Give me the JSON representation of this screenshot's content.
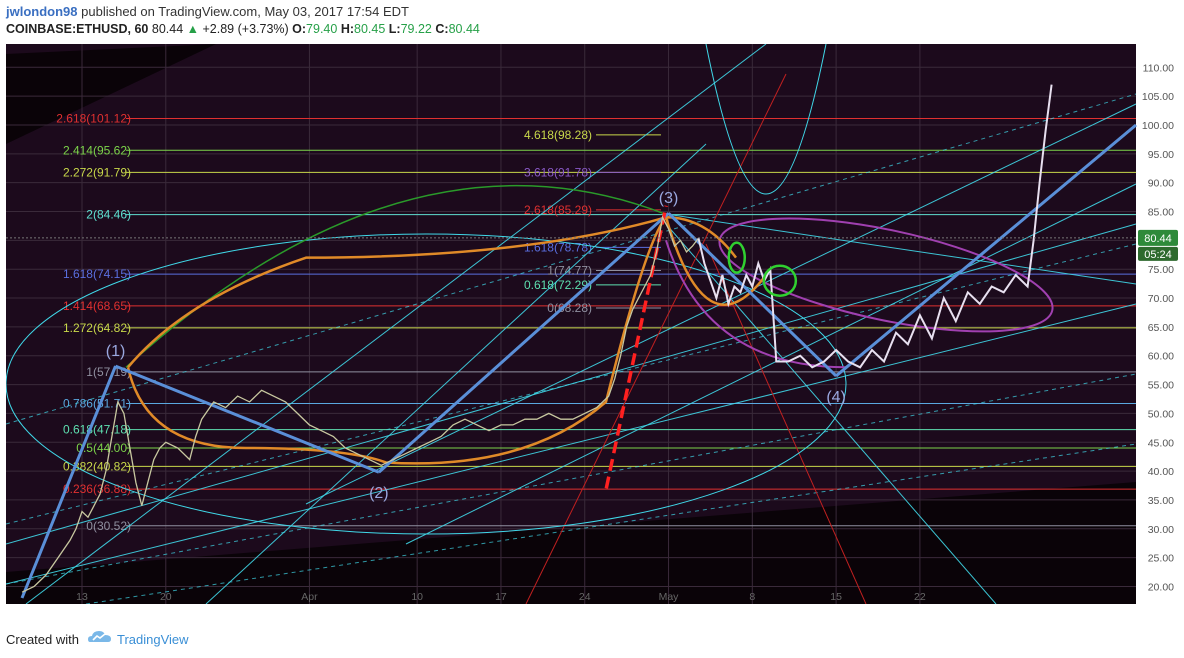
{
  "header": {
    "author": "jwlondon98",
    "published": "published on TradingView.com, May 03, 2017 17:54 EDT",
    "symbol": "COINBASE:ETHUSD, 60",
    "last": "80.44",
    "change": "+2.89 (+3.73%)",
    "o_label": "O:",
    "o_value": "79.40",
    "h_label": "H:",
    "h_value": "80.45",
    "l_label": "L:",
    "l_value": "79.22",
    "c_label": "C:",
    "c_value": "80.44"
  },
  "footer": {
    "created": "Created with",
    "brand": "TradingView"
  },
  "colors": {
    "background": "#1c0a1c",
    "up": "#26a048",
    "fib_red": "#e03030",
    "fib_yellow": "#c8d84a",
    "fib_teal": "#5ee0d0",
    "fib_blue": "#5a6fe0",
    "fib_purple": "#b060c0",
    "trend_blue": "#5a8fd8",
    "orange": "#e08a28",
    "cyan": "#40d8e8"
  },
  "chart_data": {
    "type": "line",
    "title": "",
    "xlabel": "",
    "ylabel": "",
    "ylim": [
      18,
      113
    ],
    "grid": true,
    "y_ticks": [
      20,
      25,
      30,
      35,
      40,
      45,
      50,
      55,
      60,
      65,
      70,
      75,
      80,
      85,
      90,
      95,
      100,
      105,
      110
    ],
    "x_ticks": [
      {
        "label": "13",
        "day": 13
      },
      {
        "label": "20",
        "day": 20
      },
      {
        "label": "Apr",
        "day": 32
      },
      {
        "label": "10",
        "day": 41
      },
      {
        "label": "17",
        "day": 48
      },
      {
        "label": "24",
        "day": 55
      },
      {
        "label": "May",
        "day": 62
      },
      {
        "label": "8",
        "day": 69
      },
      {
        "label": "15",
        "day": 76
      },
      {
        "label": "22",
        "day": 83
      }
    ],
    "current_price": {
      "value": "80.44",
      "timer": "05:24"
    },
    "price_series": [
      [
        8,
        19
      ],
      [
        9,
        20
      ],
      [
        10,
        22
      ],
      [
        11,
        25
      ],
      [
        12,
        28
      ],
      [
        12.5,
        30
      ],
      [
        13,
        33
      ],
      [
        13.5,
        32
      ],
      [
        14,
        34
      ],
      [
        14.5,
        36
      ],
      [
        15,
        40
      ],
      [
        15.5,
        46
      ],
      [
        16,
        52
      ],
      [
        16.5,
        50
      ],
      [
        17,
        44
      ],
      [
        17.5,
        38
      ],
      [
        18,
        34
      ],
      [
        18.5,
        38
      ],
      [
        19,
        42
      ],
      [
        19.5,
        44
      ],
      [
        20,
        45
      ],
      [
        21,
        44
      ],
      [
        22,
        42
      ],
      [
        22.5,
        46
      ],
      [
        23,
        49
      ],
      [
        24,
        52
      ],
      [
        25,
        51
      ],
      [
        26,
        53
      ],
      [
        27,
        52
      ],
      [
        28,
        54
      ],
      [
        29,
        53
      ],
      [
        30,
        52
      ],
      [
        31,
        50
      ],
      [
        32,
        48
      ],
      [
        33,
        47
      ],
      [
        34,
        46
      ],
      [
        35,
        44
      ],
      [
        36,
        43
      ],
      [
        37,
        42
      ],
      [
        38,
        41
      ],
      [
        39,
        42
      ],
      [
        40,
        43
      ],
      [
        41,
        44
      ],
      [
        42,
        45
      ],
      [
        43,
        46
      ],
      [
        44,
        48
      ],
      [
        45,
        49
      ],
      [
        46,
        48
      ],
      [
        47,
        47
      ],
      [
        48,
        48
      ],
      [
        49,
        48
      ],
      [
        50,
        49
      ],
      [
        51,
        49
      ],
      [
        52,
        50
      ],
      [
        53,
        49
      ],
      [
        54,
        49
      ],
      [
        55,
        50
      ],
      [
        56,
        51
      ],
      [
        57,
        53
      ],
      [
        57.5,
        56
      ],
      [
        58,
        60
      ],
      [
        58.5,
        65
      ],
      [
        59,
        68
      ],
      [
        59.5,
        70
      ],
      [
        60,
        72
      ],
      [
        60.5,
        74
      ],
      [
        61,
        78
      ],
      [
        61.5,
        84
      ],
      [
        62,
        82
      ],
      [
        62.5,
        79
      ],
      [
        63,
        80
      ],
      [
        63.5,
        78
      ],
      [
        64,
        79
      ],
      [
        64.5,
        80.4
      ]
    ],
    "projection_path": [
      [
        64.5,
        80.4
      ],
      [
        65,
        76
      ],
      [
        65.5,
        73
      ],
      [
        66,
        70
      ],
      [
        66.5,
        74
      ],
      [
        67,
        69
      ],
      [
        67.5,
        72
      ],
      [
        68,
        71
      ],
      [
        68.5,
        74
      ],
      [
        69,
        72
      ],
      [
        69.5,
        76
      ],
      [
        70,
        73
      ],
      [
        70.5,
        75
      ],
      [
        71,
        59
      ],
      [
        72,
        59
      ],
      [
        73,
        60
      ],
      [
        74,
        58
      ],
      [
        75,
        59
      ],
      [
        76,
        61
      ],
      [
        77,
        59
      ],
      [
        78,
        58
      ],
      [
        79,
        61
      ],
      [
        80,
        59
      ],
      [
        81,
        64
      ],
      [
        82,
        62
      ],
      [
        83,
        67
      ],
      [
        84,
        63
      ],
      [
        85,
        70
      ],
      [
        86,
        66
      ],
      [
        87,
        71
      ],
      [
        88,
        69
      ],
      [
        89,
        72
      ],
      [
        90,
        71
      ],
      [
        91,
        74
      ],
      [
        92,
        72
      ],
      [
        92.5,
        80
      ],
      [
        93,
        90
      ],
      [
        93.5,
        99
      ],
      [
        94,
        107
      ]
    ],
    "fib_levels": [
      {
        "label": "2.618(101.12)",
        "value": 101.12,
        "color": "#e03030"
      },
      {
        "label": "2.414(95.62)",
        "value": 95.62,
        "color": "#7cd44a"
      },
      {
        "label": "2.272(91.79)",
        "value": 91.79,
        "color": "#c8d84a"
      },
      {
        "label": "2(84.46)",
        "value": 84.46,
        "color": "#5ee0d0"
      },
      {
        "label": "1.618(74.15)",
        "value": 74.15,
        "color": "#5a6fe0"
      },
      {
        "label": "1.414(68.65)",
        "value": 68.65,
        "color": "#e03030"
      },
      {
        "label": "1.272(64.82)",
        "value": 64.82,
        "color": "#c8d84a"
      },
      {
        "label": "1(57.19)",
        "value": 57.19,
        "color": "#9090a0"
      },
      {
        "label": "0.786(51.71)",
        "value": 51.71,
        "color": "#5aa8e0"
      },
      {
        "label": "0.618(47.18)",
        "value": 47.18,
        "color": "#5ee0b0"
      },
      {
        "label": "0.5(44.00)",
        "value": 44.0,
        "color": "#7cd44a"
      },
      {
        "label": "0.382(40.82)",
        "value": 40.82,
        "color": "#c8d84a"
      },
      {
        "label": "0.236(36.88)",
        "value": 36.88,
        "color": "#e03030"
      },
      {
        "label": "0(30.52)",
        "value": 30.52,
        "color": "#9090a0"
      }
    ],
    "fib_levels_2": [
      {
        "label": "4.618(98.28)",
        "value": 98.28,
        "color": "#c8d84a"
      },
      {
        "label": "3.618(91.78)",
        "value": 91.78,
        "color": "#8a5ac8"
      },
      {
        "label": "2.618(85.29)",
        "value": 85.29,
        "color": "#e03030"
      },
      {
        "label": "1.618(78.78)",
        "value": 78.78,
        "color": "#5a6fe0"
      },
      {
        "label": "1(74.77)",
        "value": 74.77,
        "color": "#9090a0"
      },
      {
        "label": "0.618(72.29)",
        "value": 72.29,
        "color": "#5ee0b0"
      },
      {
        "label": "0(68.28)",
        "value": 68.28,
        "color": "#9090a0"
      }
    ],
    "waves": [
      {
        "label": "(1)",
        "x": 15.8,
        "y": 58.2
      },
      {
        "label": "(2)",
        "x": 37.8,
        "y": 39.8
      },
      {
        "label": "(3)",
        "x": 62.0,
        "y": 84.7
      },
      {
        "label": "(4)",
        "x": 76.0,
        "y": 56.5
      }
    ]
  }
}
